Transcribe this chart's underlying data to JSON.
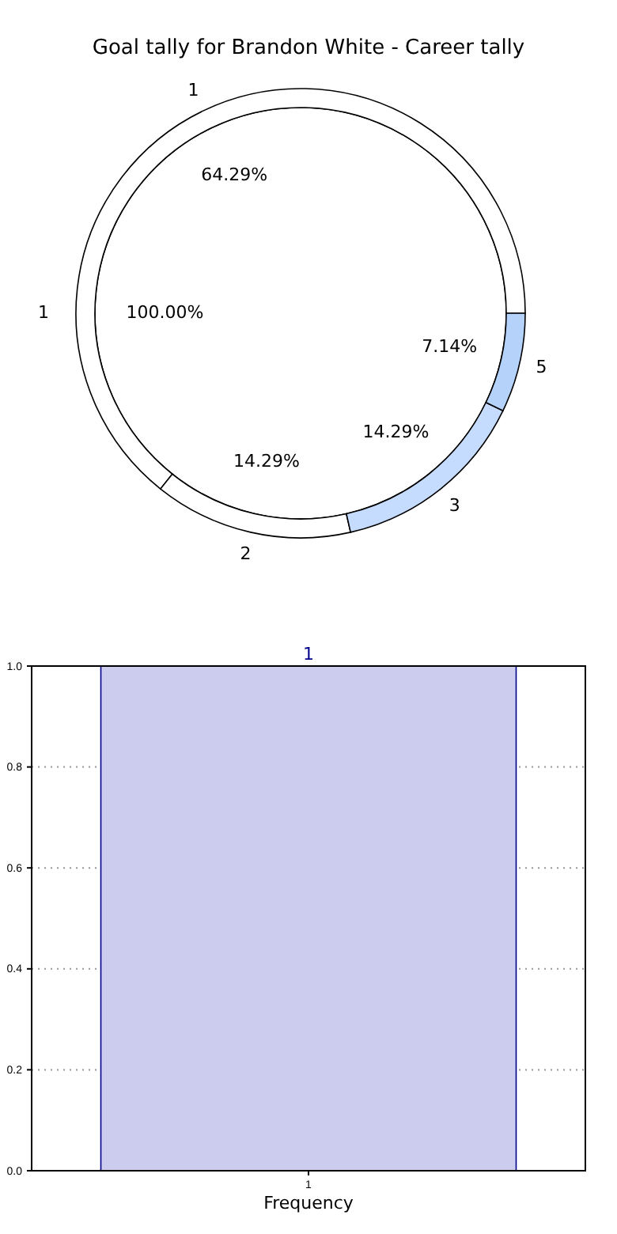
{
  "chart_data": [
    {
      "type": "pie",
      "title": "Goal tally for Brandon White - Career tally",
      "categories": [
        "1"
      ],
      "values": [
        100
      ],
      "colors": [
        "#ffffff"
      ],
      "value_labels": [
        "100.00%"
      ]
    },
    {
      "type": "donut",
      "categories": [
        "1",
        "2",
        "3",
        "5"
      ],
      "values": [
        64.29,
        14.29,
        14.29,
        7.14
      ],
      "colors": [
        "#ffffff",
        "#ffffff",
        "#c6dcff",
        "#b4d2fa"
      ],
      "value_labels": [
        "64.29%",
        "14.29%",
        "14.29%",
        "7.14%"
      ]
    },
    {
      "type": "bar",
      "categories": [
        "1"
      ],
      "values": [
        1
      ],
      "color": "#ccccee",
      "data_labels": true,
      "ylim": [
        0,
        1
      ],
      "yticks": [
        {
          "value": 0,
          "label": "0.0"
        },
        {
          "value": 0.2,
          "label": "0.2"
        },
        {
          "value": 0.4,
          "label": "0.4"
        },
        {
          "value": 0.6,
          "label": "0.6"
        },
        {
          "value": 0.8,
          "label": "0.8"
        },
        {
          "value": 1,
          "label": "1.0"
        }
      ],
      "xlabel": "Frequency",
      "grid": true
    }
  ]
}
